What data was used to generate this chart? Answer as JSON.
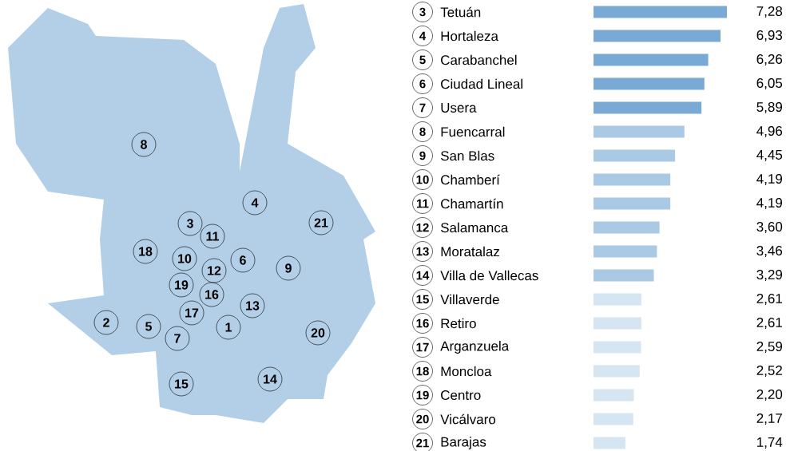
{
  "chart_data": {
    "type": "bar",
    "orientation": "horizontal",
    "categories": [
      "Tetuán",
      "Hortaleza",
      "Carabanchel",
      "Ciudad Lineal",
      "Usera",
      "Fuencarral",
      "San Blas",
      "Chamberí",
      "Chamartín",
      "Salamanca",
      "Moratalaz",
      "Villa de Vallecas",
      "Villaverde",
      "Retiro",
      "Arganzuela",
      "Moncloa",
      "Centro",
      "Vicálvaro",
      "Barajas"
    ],
    "annotations": [
      "3",
      "4",
      "5",
      "6",
      "7",
      "8",
      "9",
      "10",
      "11",
      "12",
      "13",
      "14",
      "15",
      "16",
      "17",
      "18",
      "19",
      "20",
      "21",
      "8",
      "4",
      "21",
      "3",
      "11",
      "18",
      "10",
      "12",
      "6",
      "9",
      "19",
      "16",
      "13",
      "17",
      "2",
      "5",
      "1",
      "7",
      "20",
      "15",
      "14"
    ],
    "values": [
      7.28,
      6.93,
      6.26,
      6.05,
      5.89,
      4.96,
      4.45,
      4.19,
      4.19,
      3.6,
      3.46,
      3.29,
      2.61,
      2.61,
      2.59,
      2.52,
      2.2,
      2.17,
      1.74
    ],
    "colors": [
      "#78aad5",
      "#78aad5",
      "#78aad5",
      "#78aad5",
      "#78aad5",
      "#a9c9e5",
      "#a9c9e5",
      "#a9c9e5",
      "#a9c9e5",
      "#a9c9e5",
      "#a9c9e5",
      "#a9c9e5",
      "#d6e5f2",
      "#d6e5f2",
      "#d6e5f2",
      "#d6e5f2",
      "#d6e5f2",
      "#d6e5f2",
      "#d6e5f2"
    ],
    "value_labels": [
      "7,28",
      "6,93",
      "6,26",
      "6,05",
      "5,89",
      "4,96",
      "4,45",
      "4,19",
      "4,19",
      "3,60",
      "3,46",
      "3,29",
      "2,61",
      "2,61",
      "2,59",
      "2,52",
      "2,20",
      "2,17",
      "1,74"
    ]
  }
}
